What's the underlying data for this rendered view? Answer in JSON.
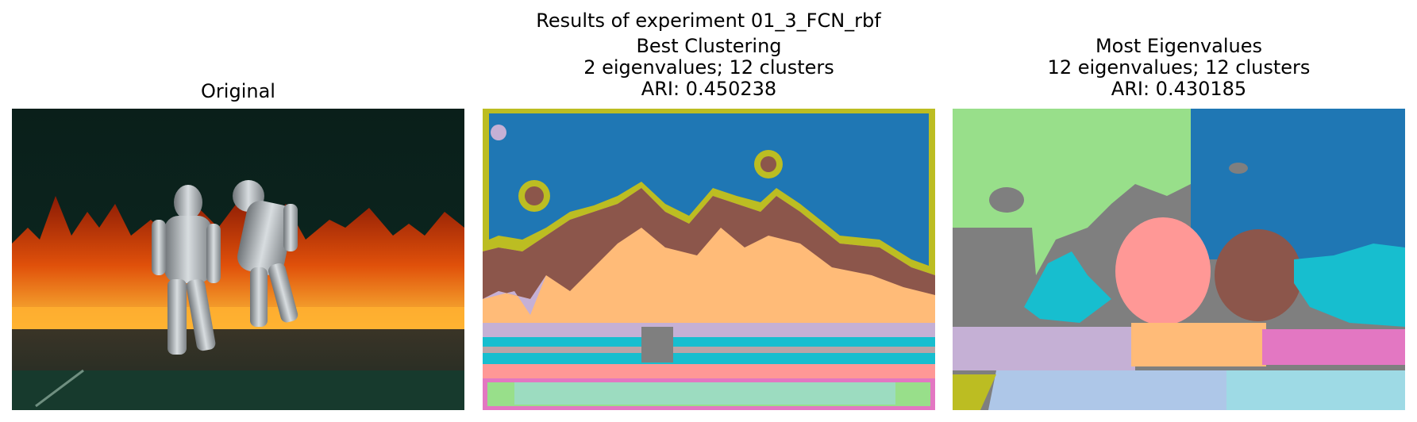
{
  "figure": {
    "suptitle": "Results of experiment 01_3_FCN_rbf"
  },
  "panels": [
    {
      "title_lines": [
        "Original"
      ],
      "image": "photo of two firefighters in silver proximity suits walking in front of a wall of flames on a dark background"
    },
    {
      "title_lines": [
        "Best Clustering",
        "2 eigenvalues; 12 clusters",
        "ARI: 0.450238"
      ],
      "image": "segmentation map with 12 clusters colored by label"
    },
    {
      "title_lines": [
        "Most Eigenvalues",
        "12 eigenvalues; 12 clusters",
        "ARI: 0.430185"
      ],
      "image": "segmentation map with 12 clusters colored by label"
    }
  ],
  "palette": {
    "blue": "#1f77b4",
    "orange_light": "#ffbb78",
    "brown": "#8c564b",
    "lavender": "#c5b0d5",
    "olive": "#bcbd22",
    "cyan": "#17becf",
    "pink": "#e377c2",
    "salmon": "#ff9896",
    "grey": "#7f7f7f",
    "light_green": "#98df8a",
    "light_blue": "#aec7e8",
    "light_cyan": "#9edae5"
  }
}
